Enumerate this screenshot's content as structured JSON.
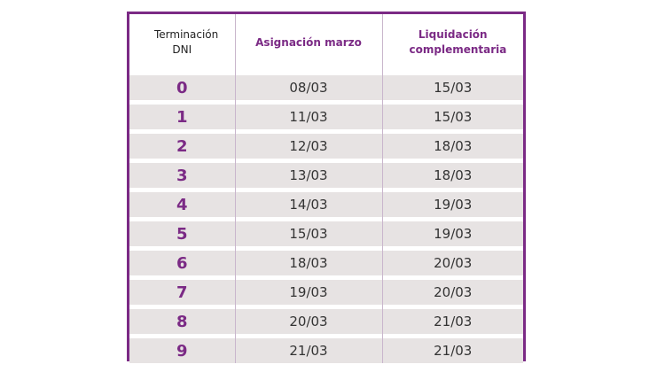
{
  "table": {
    "header": [
      "Terminación DNI",
      "Asignación marzo",
      "Liquidación complementaria"
    ],
    "rows": [
      [
        "0",
        "08/03",
        "15/03"
      ],
      [
        "1",
        "11/03",
        "15/03"
      ],
      [
        "2",
        "12/03",
        "18/03"
      ],
      [
        "3",
        "13/03",
        "18/03"
      ],
      [
        "4",
        "14/03",
        "19/03"
      ],
      [
        "5",
        "15/03",
        "19/03"
      ],
      [
        "6",
        "18/03",
        "20/03"
      ],
      [
        "7",
        "19/03",
        "20/03"
      ],
      [
        "8",
        "20/03",
        "21/03"
      ],
      [
        "9",
        "21/03",
        "21/03"
      ]
    ]
  }
}
